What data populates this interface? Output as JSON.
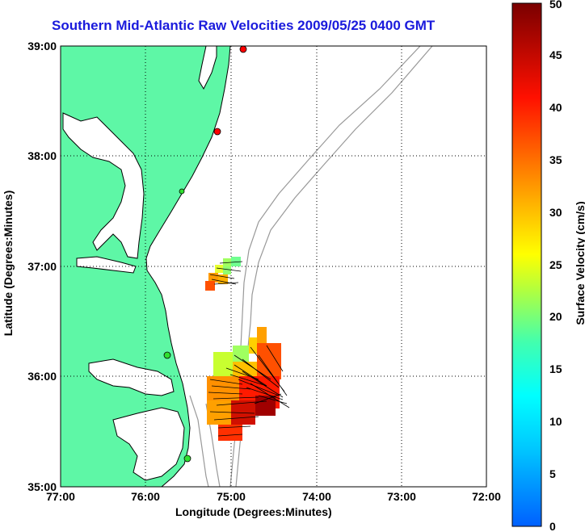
{
  "title": "Southern Mid-Atlantic Raw Velocities 2009/05/25 0400 GMT",
  "axes": {
    "xlabel": "Longitude (Degrees:Minutes)",
    "ylabel": "Latitude (Degrees:Minutes)",
    "xticks": [
      "77:00",
      "76:00",
      "75:00",
      "74:00",
      "73:00",
      "72:00"
    ],
    "yticks": [
      "39:00",
      "38:00",
      "37:00",
      "36:00",
      "35:00"
    ],
    "grid": "dotted"
  },
  "colorbar": {
    "label": "Surface Velocity (cm/s)",
    "ticks": [
      "0",
      "5",
      "10",
      "15",
      "20",
      "25",
      "30",
      "35",
      "40",
      "45",
      "50"
    ],
    "min": 0,
    "max": 50
  },
  "colors": {
    "land": "#5ef7a6",
    "water": "#ffffff",
    "bathymetry": "#999999",
    "title": "#1a1adc",
    "arrows": "#000000"
  },
  "stations": [
    {
      "color": "red"
    },
    {
      "color": "red"
    },
    {
      "color": "green"
    },
    {
      "color": "green"
    },
    {
      "color": "green"
    }
  ]
}
